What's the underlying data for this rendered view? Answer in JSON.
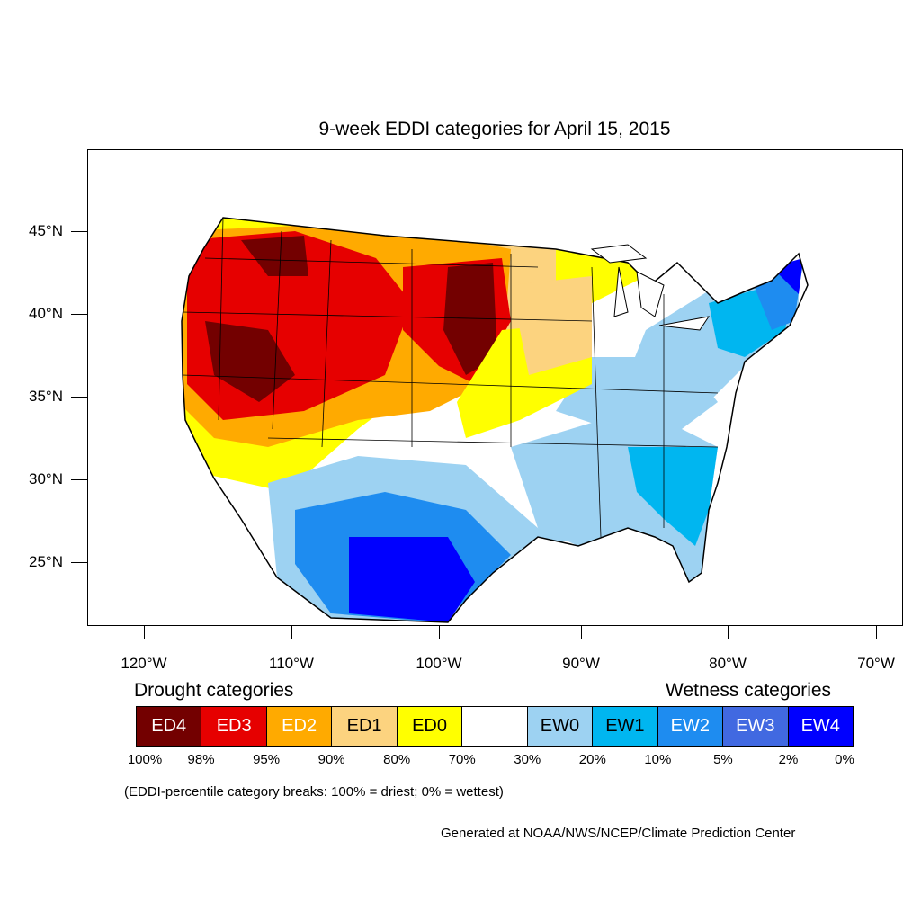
{
  "title": "9-week EDDI categories for April 15, 2015",
  "lat_labels": [
    "45°N",
    "40°N",
    "35°N",
    "30°N",
    "25°N"
  ],
  "lon_labels": [
    "120°W",
    "110°W",
    "100°W",
    "90°W",
    "80°W",
    "70°W"
  ],
  "legend": {
    "drought_heading": "Drought categories",
    "wetness_heading": "Wetness categories",
    "categories": [
      {
        "label": "ED4",
        "color": "#730000",
        "text_color": "#ffffff"
      },
      {
        "label": "ED3",
        "color": "#e60000",
        "text_color": "#ffffff"
      },
      {
        "label": "ED2",
        "color": "#ffaa00",
        "text_color": "#ffffff"
      },
      {
        "label": "ED1",
        "color": "#fcd37f",
        "text_color": "#000000"
      },
      {
        "label": "ED0",
        "color": "#ffff00",
        "text_color": "#000000"
      },
      {
        "label": "",
        "color": "#ffffff",
        "text_color": "#000000"
      },
      {
        "label": "EW0",
        "color": "#9dd2f2",
        "text_color": "#000000"
      },
      {
        "label": "EW1",
        "color": "#00b6f0",
        "text_color": "#000000"
      },
      {
        "label": "EW2",
        "color": "#1e8cf0",
        "text_color": "#ffffff"
      },
      {
        "label": "EW3",
        "color": "#4169e1",
        "text_color": "#ffffff"
      },
      {
        "label": "EW4",
        "color": "#0000ff",
        "text_color": "#ffffff"
      }
    ],
    "percent_breaks": [
      "100%",
      "98%",
      "95%",
      "90%",
      "80%",
      "70%",
      "30%",
      "20%",
      "10%",
      "5%",
      "2%",
      "0%"
    ]
  },
  "note": "(EDDI-percentile category breaks: 100% = driest; 0% = wettest)",
  "credit": "Generated at NOAA/NWS/NCEP/Climate Prediction Center"
}
